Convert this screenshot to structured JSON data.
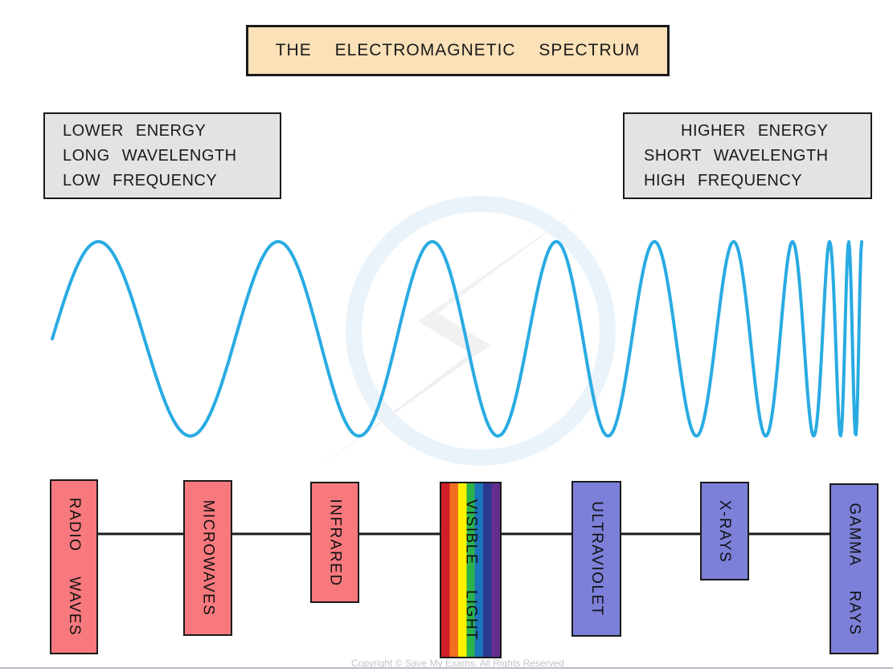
{
  "title": "THE ELECTROMAGNETIC SPECTRUM",
  "energy_labels": {
    "left": {
      "lines": [
        "LOWER ENERGY",
        "LONG WAVELENGTH",
        "LOW FREQUENCY"
      ]
    },
    "right": {
      "lines": [
        "HIGHER ENERGY",
        "SHORT WAVELENGTH",
        "HIGH FREQUENCY"
      ]
    }
  },
  "wave": {
    "description": "sine wave whose frequency increases from left to right",
    "color": "#29ABE2"
  },
  "spectrum_bands": [
    {
      "label": "RADIO WAVES",
      "fill": "#F7797E"
    },
    {
      "label": "MICROWAVES",
      "fill": "#F7797E"
    },
    {
      "label": "INFRARED",
      "fill": "#F7797E"
    },
    {
      "label": "VISIBLE LIGHT",
      "fill": "rainbow",
      "stripes": [
        "#D01F26",
        "#F36E21",
        "#FFF200",
        "#2BB34B",
        "#1B75BC",
        "#2B3990",
        "#652D90"
      ]
    },
    {
      "label": "ULTRAVIOLET",
      "fill": "#7C80D8"
    },
    {
      "label": "X-RAYS",
      "fill": "#7C80D8"
    },
    {
      "label": "GAMMA RAYS",
      "fill": "#7C80D8"
    }
  ],
  "colors": {
    "title_box_fill": "#FAE1B7",
    "info_box_fill": "#E3E3E3",
    "axis_line": "#1a1a1a",
    "watermark_ring": "#EAF3FA",
    "watermark_bolt": "#F0F1F3",
    "bottom_rule": "#B7BDC7"
  },
  "footer": {
    "copyright": "Copyright © Save My Exams. All Rights Reserved"
  }
}
